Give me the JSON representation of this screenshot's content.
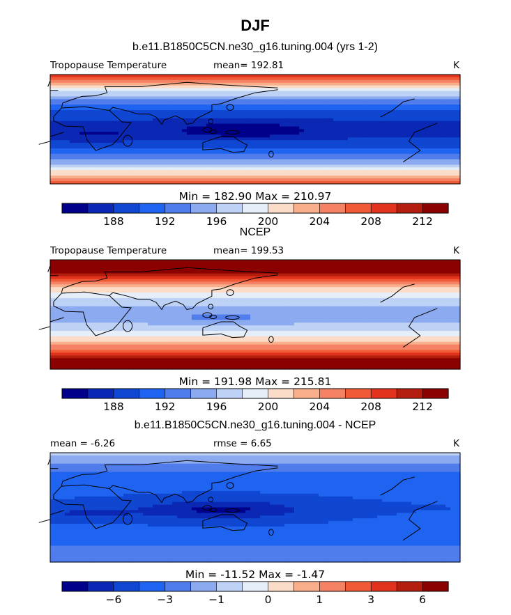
{
  "figure": {
    "title": "DJF"
  },
  "colorbar": {
    "colors": [
      "#00008b",
      "#0a28b4",
      "#0f46d2",
      "#1e64f0",
      "#507deb",
      "#8caaf0",
      "#bed2f5",
      "#e6eefa",
      "#fadcc8",
      "#faaf8c",
      "#f58264",
      "#f05a37",
      "#e1321e",
      "#b41e0f",
      "#8b0000"
    ]
  },
  "chart_data": [
    {
      "type": "heatmap",
      "subtitle": "b.e11.B1850C5CN.ne30_g16.tuning.004 (yrs 1-2)",
      "variable": "Tropopause Temperature",
      "mean_label": "mean=",
      "mean_value": "192.81",
      "units": "K",
      "min_label": "Min =",
      "min_value": "182.90",
      "max_label": "Max =",
      "max_value": "210.97",
      "colorbar_ticks": [
        "188",
        "192",
        "196",
        "200",
        "204",
        "208",
        "212"
      ],
      "colorbar_levels": [
        186,
        188,
        190,
        192,
        194,
        196,
        198,
        200,
        202,
        204,
        206,
        208,
        210,
        212
      ],
      "field": "model"
    },
    {
      "type": "heatmap",
      "subtitle": "NCEP",
      "variable": "Tropopause Temperature",
      "mean_label": "mean=",
      "mean_value": "199.53",
      "units": "K",
      "min_label": "Min =",
      "min_value": "191.98",
      "max_label": "Max =",
      "max_value": "215.81",
      "colorbar_ticks": [
        "188",
        "192",
        "196",
        "200",
        "204",
        "208",
        "212"
      ],
      "colorbar_levels": [
        186,
        188,
        190,
        192,
        194,
        196,
        198,
        200,
        202,
        204,
        206,
        208,
        210,
        212
      ],
      "field": "ncep"
    },
    {
      "type": "heatmap",
      "subtitle": "b.e11.B1850C5CN.ne30_g16.tuning.004 - NCEP",
      "mean_label": "mean =",
      "mean_value": "-6.26",
      "rmse_label": "rmse =",
      "rmse_value": "6.65",
      "units": "K",
      "min_label": "Min =",
      "min_value": "-11.52",
      "max_label": "Max =",
      "max_value": "-1.47",
      "colorbar_ticks": [
        "-6",
        "-3",
        "-1",
        "0",
        "1",
        "3",
        "6"
      ],
      "colorbar_levels": [
        -8,
        -6,
        -4,
        -3,
        -2,
        -1,
        -0.5,
        0,
        0.5,
        1,
        2,
        3,
        4,
        6
      ],
      "field": "diff"
    }
  ]
}
